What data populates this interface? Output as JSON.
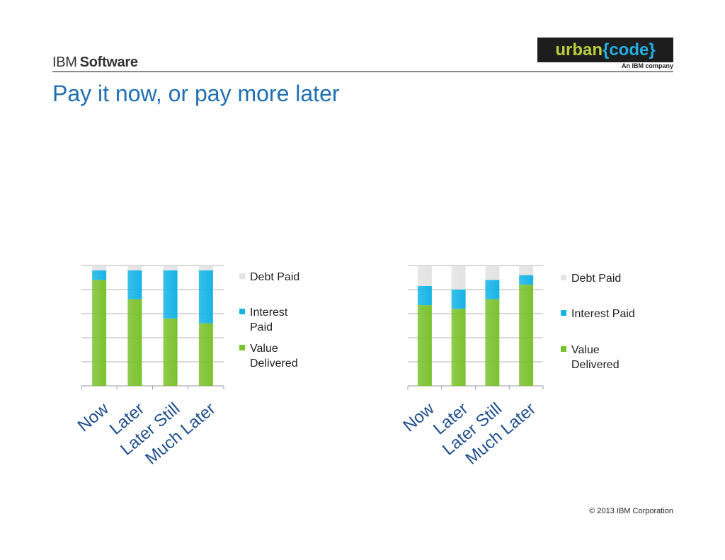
{
  "header": {
    "brand_light": "IBM",
    "brand_bold": "Software",
    "logo_word": "urban",
    "logo_braced": "{code}",
    "logo_tagline": "An IBM company",
    "title": "Pay it now, or pay more later"
  },
  "footer": {
    "copyright": "© 2013 IBM Corporation"
  },
  "colors": {
    "value_delivered": "#7cc22e",
    "interest_paid": "#16b4e6",
    "debt_paid": "#e3e3e3",
    "gridline": "#999999",
    "title": "#1f6fb2"
  },
  "chart_data": [
    {
      "type": "bar",
      "stacked": true,
      "categories": [
        "Now",
        "Later",
        "Later Still",
        "Much Later"
      ],
      "series": [
        {
          "name": "Value Delivered",
          "values": [
            88,
            72,
            56,
            52
          ]
        },
        {
          "name": "Interest Paid",
          "values": [
            8,
            24,
            40,
            44
          ]
        },
        {
          "name": "Debt Paid",
          "values": [
            4,
            4,
            4,
            4
          ]
        }
      ],
      "legend": {
        "position": "right",
        "labels": [
          "Debt Paid",
          "Interest\nPaid",
          "Value\nDelivered"
        ]
      },
      "ylim": [
        0,
        100
      ],
      "grid": true
    },
    {
      "type": "bar",
      "stacked": true,
      "categories": [
        "Now",
        "Later",
        "Later Still",
        "Much Later"
      ],
      "series": [
        {
          "name": "Value Delivered",
          "values": [
            67,
            64,
            72,
            84
          ]
        },
        {
          "name": "Interest Paid",
          "values": [
            16,
            16,
            16,
            8
          ]
        },
        {
          "name": "Debt Paid",
          "values": [
            17,
            20,
            12,
            8
          ]
        }
      ],
      "legend": {
        "position": "right",
        "labels": [
          "Debt Paid",
          "Interest Paid",
          "Value\nDelivered"
        ]
      },
      "ylim": [
        0,
        100
      ],
      "grid": true
    }
  ]
}
